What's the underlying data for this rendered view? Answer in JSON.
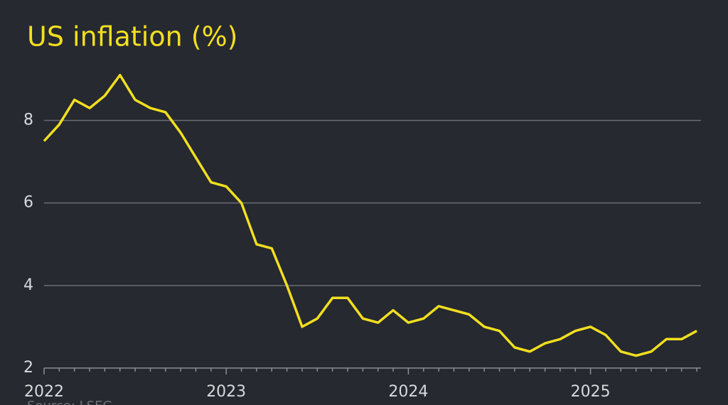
{
  "chart_data": {
    "type": "line",
    "title": "US inflation (%)",
    "source": "Source: LSEG",
    "categories": [
      "2022",
      null,
      null,
      null,
      null,
      null,
      null,
      null,
      null,
      null,
      null,
      null,
      "2023",
      null,
      null,
      null,
      null,
      null,
      null,
      null,
      null,
      null,
      null,
      null,
      "2024",
      null,
      null,
      null,
      null,
      null,
      null,
      null,
      null,
      null,
      null,
      null,
      "2025",
      null,
      null,
      null,
      null,
      null,
      null,
      null
    ],
    "series": [
      {
        "name": "US inflation",
        "color": "#f2df1f",
        "values": [
          7.5,
          7.9,
          8.5,
          8.3,
          8.6,
          9.1,
          8.5,
          8.3,
          8.2,
          7.7,
          7.1,
          6.5,
          6.4,
          6.0,
          5.0,
          4.9,
          4.0,
          3.0,
          3.2,
          3.7,
          3.7,
          3.2,
          3.1,
          3.4,
          3.1,
          3.2,
          3.5,
          3.4,
          3.3,
          3.0,
          2.9,
          2.5,
          2.4,
          2.6,
          2.7,
          2.9,
          3.0,
          2.8,
          2.4,
          2.3,
          2.4,
          2.7,
          2.7,
          2.9
        ]
      }
    ],
    "ylim": [
      2,
      9.3
    ],
    "yticks": [
      2,
      4,
      6,
      8
    ],
    "grid": true
  }
}
